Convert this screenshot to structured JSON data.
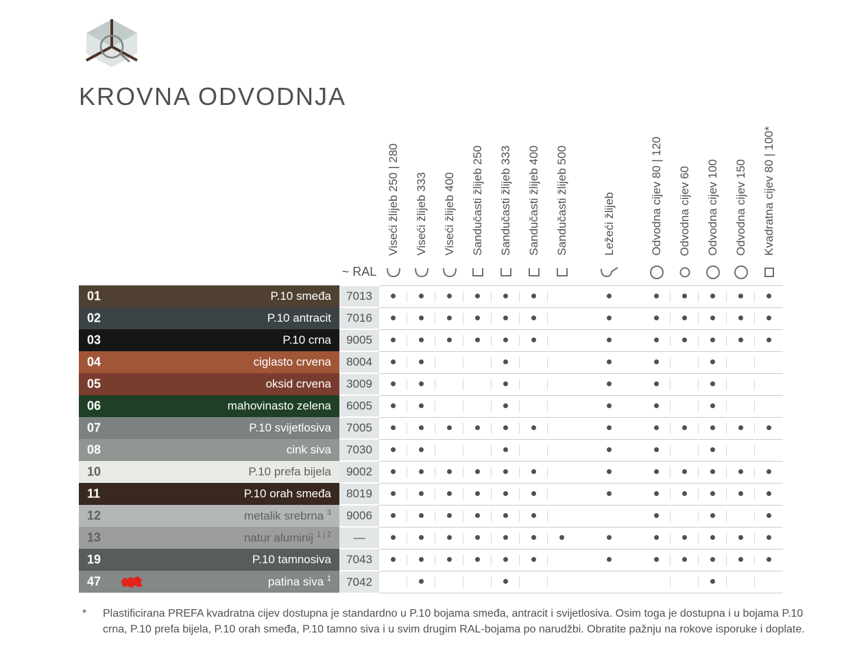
{
  "title": "KROVNA ODVODNJA",
  "ral_header": "~ RAL",
  "columns": [
    {
      "label": "Viseći žlijeb 250 | 280",
      "shape": "u-open",
      "group": 1
    },
    {
      "label": "Viseći žlijeb 333",
      "shape": "u-open",
      "group": 1
    },
    {
      "label": "Viseći žlijeb 400",
      "shape": "u-open",
      "group": 1
    },
    {
      "label": "Sandučasti žlijeb 250",
      "shape": "box-u",
      "group": 1
    },
    {
      "label": "Sandučasti žlijeb 333",
      "shape": "box-u",
      "group": 1
    },
    {
      "label": "Sandučasti žlijeb 400",
      "shape": "box-u",
      "group": 1
    },
    {
      "label": "Sandučasti žlijeb 500",
      "shape": "box-u",
      "group": 1
    },
    {
      "label": "Ležeći žlijeb",
      "shape": "hook",
      "group": 2
    },
    {
      "label": "Odvodna cijev 80 | 120",
      "shape": "circle",
      "group": 3
    },
    {
      "label": "Odvodna cijev 60",
      "shape": "circle-sm",
      "group": 3
    },
    {
      "label": "Odvodna cijev 100",
      "shape": "circle",
      "group": 3
    },
    {
      "label": "Odvodna cijev 150",
      "shape": "circle",
      "group": 3
    },
    {
      "label": "Kvadratna cijev 80 | 100*",
      "shape": "square",
      "group": 3
    }
  ],
  "rows": [
    {
      "code": "01",
      "name": "P.10 smeđa",
      "color": "#4f4032",
      "text": "#ffffff",
      "ral": "7013",
      "region": false,
      "dots": [
        1,
        1,
        1,
        1,
        1,
        1,
        0,
        1,
        1,
        1,
        1,
        1,
        1
      ]
    },
    {
      "code": "02",
      "name": "P.10 antracit",
      "color": "#3b4347",
      "text": "#ffffff",
      "ral": "7016",
      "region": false,
      "dots": [
        1,
        1,
        1,
        1,
        1,
        1,
        0,
        1,
        1,
        1,
        1,
        1,
        1
      ]
    },
    {
      "code": "03",
      "name": "P.10 crna",
      "color": "#161616",
      "text": "#ffffff",
      "ral": "9005",
      "region": false,
      "dots": [
        1,
        1,
        1,
        1,
        1,
        1,
        0,
        1,
        1,
        1,
        1,
        1,
        1
      ]
    },
    {
      "code": "04",
      "name": "ciglasto crvena",
      "color": "#a05637",
      "text": "#ffffff",
      "ral": "8004",
      "region": false,
      "dots": [
        1,
        1,
        0,
        0,
        1,
        0,
        0,
        1,
        1,
        0,
        1,
        0,
        0
      ]
    },
    {
      "code": "05",
      "name": "oksid crvena",
      "color": "#793d2f",
      "text": "#ffffff",
      "ral": "3009",
      "region": false,
      "dots": [
        1,
        1,
        0,
        0,
        1,
        0,
        0,
        1,
        1,
        0,
        1,
        0,
        0
      ]
    },
    {
      "code": "06",
      "name": "mahovinasto zelena",
      "color": "#1f4026",
      "text": "#ffffff",
      "ral": "6005",
      "region": false,
      "dots": [
        1,
        1,
        0,
        0,
        1,
        0,
        0,
        1,
        1,
        0,
        1,
        0,
        0
      ]
    },
    {
      "code": "07",
      "name": "P.10 svijetlosiva",
      "color": "#7d8182",
      "text": "#ffffff",
      "ral": "7005",
      "region": false,
      "dots": [
        1,
        1,
        1,
        1,
        1,
        1,
        0,
        1,
        1,
        1,
        1,
        1,
        1
      ]
    },
    {
      "code": "08",
      "name": "cink siva",
      "color": "#929692",
      "text": "#ffffff",
      "ral": "7030",
      "region": false,
      "dots": [
        1,
        1,
        0,
        0,
        1,
        0,
        0,
        1,
        1,
        0,
        1,
        0,
        0
      ]
    },
    {
      "code": "10",
      "name": "P.10 prefa bijela",
      "color": "#e9eae5",
      "text": "#606060",
      "ral": "9002",
      "region": false,
      "dots": [
        1,
        1,
        1,
        1,
        1,
        1,
        0,
        1,
        1,
        1,
        1,
        1,
        1
      ]
    },
    {
      "code": "11",
      "name": "P.10 orah smeđa",
      "color": "#38281f",
      "text": "#ffffff",
      "ral": "8019",
      "region": false,
      "dots": [
        1,
        1,
        1,
        1,
        1,
        1,
        0,
        1,
        1,
        1,
        1,
        1,
        1
      ]
    },
    {
      "code": "12",
      "name": "metalik srebrna",
      "sup": "3",
      "color": "#b4b7b7",
      "text": "#606060",
      "ral": "9006",
      "region": false,
      "dots": [
        1,
        1,
        1,
        1,
        1,
        1,
        0,
        0,
        1,
        0,
        1,
        0,
        1
      ]
    },
    {
      "code": "13",
      "name": "natur aluminij",
      "sup": "1 | 2",
      "color": "#9c9e9d",
      "text": "#606060",
      "ral": "—",
      "region": false,
      "dots": [
        1,
        1,
        1,
        1,
        1,
        1,
        1,
        1,
        1,
        1,
        1,
        1,
        1
      ]
    },
    {
      "code": "19",
      "name": "P.10 tamnosiva",
      "color": "#575c5d",
      "text": "#ffffff",
      "ral": "7043",
      "region": false,
      "dots": [
        1,
        1,
        1,
        1,
        1,
        1,
        0,
        1,
        1,
        1,
        1,
        1,
        1
      ]
    },
    {
      "code": "47",
      "name": "patina siva",
      "sup": "1",
      "color": "#848886",
      "text": "#ffffff",
      "ral": "7042",
      "region": true,
      "dots": [
        0,
        1,
        0,
        0,
        1,
        0,
        0,
        0,
        0,
        0,
        1,
        0,
        0
      ]
    }
  ],
  "footnote": {
    "marker": "*",
    "text": "Plastificirana PREFA kvadratna cijev dostupna je standardno u P.10 bojama smeđa, antracit i svijetlosiva. Osim toga je dostupna i u bojama P.10 crna, P.10 prefa bijela, P.10 orah smeđa, P.10 tamno siva i u svim drugim RAL-bojama po narudžbi. Obratite pažnju na rokove isporuke i doplate."
  },
  "shape_stroke": "#707070",
  "dot_color": "#505050",
  "region_icon_color": "#e2231a"
}
